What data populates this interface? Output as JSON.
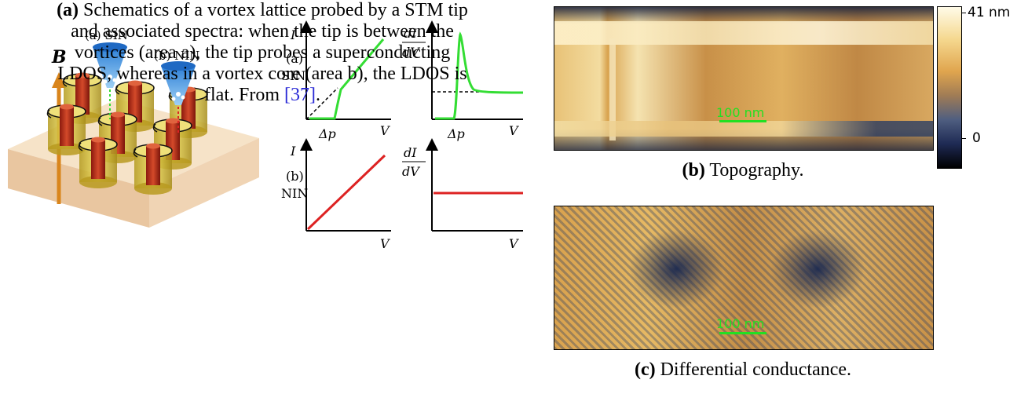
{
  "figure_a": {
    "probe_sin": "(a) SIN",
    "probe_nin": "(b) NIN",
    "field_label": "B",
    "plots": {
      "y_I": "I",
      "y_dIdV_num": "dI",
      "y_dIdV_den": "dV",
      "x_V": "V",
      "gap_label": "Δp",
      "row_a_tag": "(a)",
      "row_a_name": "SIN",
      "row_b_tag": "(b)",
      "row_b_name": "NIN"
    },
    "colors": {
      "sin": "#33dd33",
      "nin": "#dd2222"
    },
    "caption_label": "(a)",
    "caption_lines": [
      "Schematics of a vortex lattice probed by a STM tip",
      "and associated spectra: when the tip is between the",
      "vortices (area a), the tip probes a superconducting",
      "LDOS, whereas in a vortex core (area b), the LDOS is",
      "flat. From "
    ],
    "caption_ref": "[37]",
    "caption_end": "."
  },
  "figure_b": {
    "scale_bar": "100 nm",
    "colorbar_max": "41 nm",
    "colorbar_min": "0",
    "caption_label": "(b)",
    "caption_text": "Topography."
  },
  "figure_c": {
    "scale_bar": "100 nm",
    "caption_label": "(c)",
    "caption_text": "Differential conductance."
  }
}
